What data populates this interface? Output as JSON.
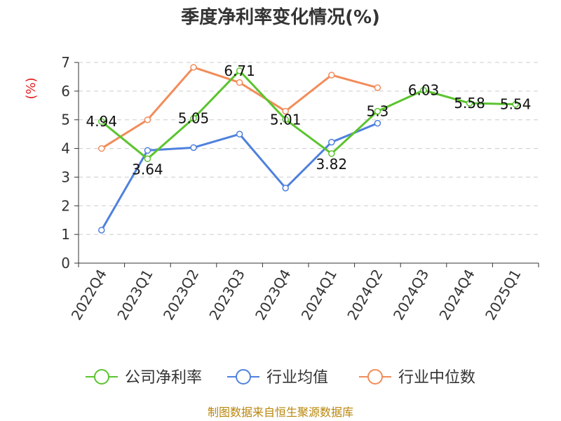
{
  "chart_data": {
    "type": "line",
    "title": "季度净利率变化情况(%)",
    "ylabel": "(%)",
    "ylim": [
      0,
      7
    ],
    "yticks": [
      0,
      1,
      2,
      3,
      4,
      5,
      6,
      7
    ],
    "grid": "horizontal-dashed",
    "legend_position": "bottom",
    "categories": [
      "2022Q4",
      "2023Q1",
      "2023Q2",
      "2023Q3",
      "2023Q4",
      "2024Q1",
      "2024Q2",
      "2024Q3",
      "2024Q4",
      "2025Q1"
    ],
    "series": [
      {
        "name": "公司净利率",
        "color": "#5bc42e",
        "values": [
          4.94,
          3.64,
          5.05,
          6.71,
          5.01,
          3.82,
          5.3,
          6.03,
          5.58,
          5.54
        ],
        "labels": [
          "4.94",
          "3.64",
          "5.05",
          "6.71",
          "5.01",
          "3.82",
          "5.3",
          "6.03",
          "5.58",
          "5.54"
        ]
      },
      {
        "name": "行业均值",
        "color": "#4f81dd",
        "values": [
          1.15,
          3.93,
          4.03,
          4.5,
          2.62,
          4.22,
          4.88,
          null,
          null,
          null
        ]
      },
      {
        "name": "行业中位数",
        "color": "#f28c5a",
        "values": [
          4.0,
          5.0,
          6.83,
          6.3,
          5.3,
          6.56,
          6.12,
          null,
          null,
          null
        ]
      }
    ]
  },
  "source_text": "制图数据来自恒生聚源数据库"
}
